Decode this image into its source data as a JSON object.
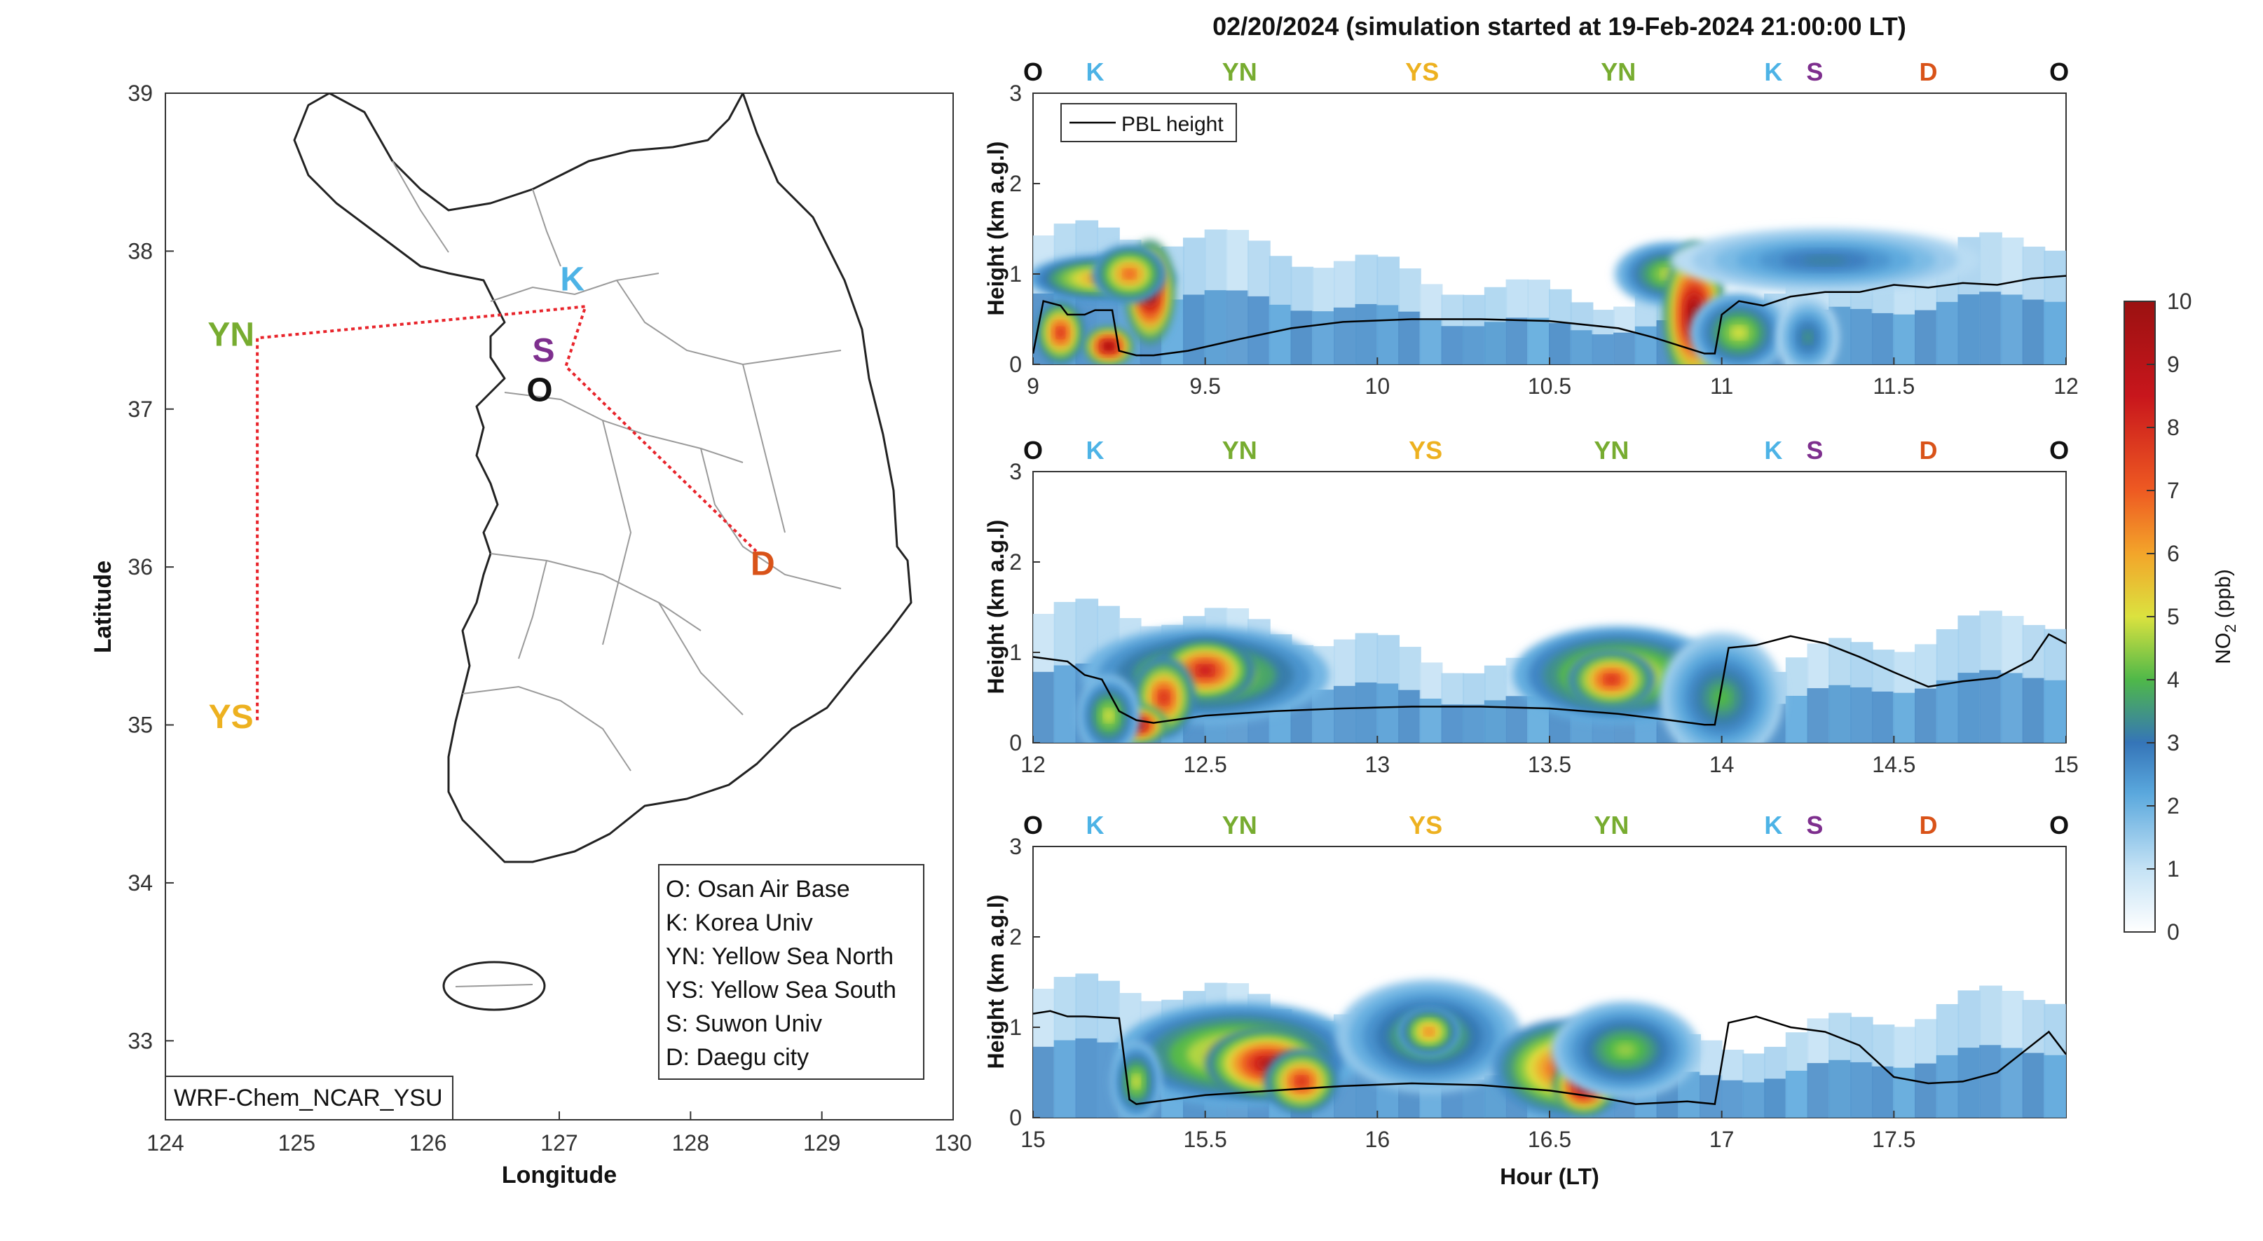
{
  "figure_title": "02/20/2024 (simulation started at 19-Feb-2024 21:00:00 LT)",
  "colors": {
    "O": "#111111",
    "K": "#4db3e6",
    "YN": "#77ac30",
    "YS": "#edb120",
    "S": "#7e2f8e",
    "D": "#d95319",
    "route": "#e8242b",
    "pbl": "#000000"
  },
  "chart_data": [
    {
      "type": "map",
      "xlabel": "Longitude",
      "ylabel": "Latitude",
      "xlim": [
        124,
        130
      ],
      "ylim": [
        32.5,
        39
      ],
      "xticks": [
        124,
        125,
        126,
        127,
        128,
        129,
        130
      ],
      "yticks": [
        33,
        34,
        35,
        36,
        37,
        38,
        39
      ],
      "model_label": "WRF-Chem_NCAR_YSU",
      "route": [
        [
          124.7,
          35.03
        ],
        [
          124.7,
          37.45
        ],
        [
          126.6,
          37.6
        ],
        [
          127.2,
          37.65
        ],
        [
          127.05,
          37.27
        ],
        [
          128.5,
          36.1
        ]
      ],
      "sites": [
        {
          "code": "O",
          "lon": 127.0,
          "lat": 37.1,
          "label_lon": 126.85,
          "label_lat": 37.05
        },
        {
          "code": "K",
          "lon": 127.2,
          "lat": 37.65,
          "label_lon": 127.1,
          "label_lat": 37.75
        },
        {
          "code": "YN",
          "lon": 124.7,
          "lat": 37.45,
          "label_lon": 124.5,
          "label_lat": 37.4
        },
        {
          "code": "YS",
          "lon": 124.7,
          "lat": 35.03,
          "label_lon": 124.5,
          "label_lat": 34.98
        },
        {
          "code": "S",
          "lon": 127.05,
          "lat": 37.27,
          "label_lon": 126.88,
          "label_lat": 37.3
        },
        {
          "code": "D",
          "lon": 128.5,
          "lat": 36.1,
          "label_lon": 128.55,
          "label_lat": 35.95
        }
      ],
      "legend": [
        "O: Osan Air Base",
        "K: Korea Univ",
        "YN: Yellow Sea North",
        "YS: Yellow Sea South",
        "S: Suwon Univ",
        "D: Daegu city"
      ]
    },
    {
      "type": "heatmap",
      "xlim": [
        9,
        12
      ],
      "ylim": [
        0,
        3
      ],
      "xticks": [
        9,
        9.5,
        10,
        10.5,
        11,
        11.5,
        12
      ],
      "yticks": [
        0,
        1,
        2,
        3
      ],
      "ylabel": "Height (km a.g.l)",
      "legend": [
        "PBL height"
      ],
      "site_labels": [
        [
          "O",
          9.0
        ],
        [
          "K",
          9.18
        ],
        [
          "YN",
          9.6
        ],
        [
          "YS",
          10.13
        ],
        [
          "YN",
          10.7
        ],
        [
          "K",
          11.15
        ],
        [
          "S",
          11.27
        ],
        [
          "D",
          11.6
        ],
        [
          "O",
          11.98
        ]
      ],
      "pbl": {
        "x": [
          9.0,
          9.03,
          9.08,
          9.1,
          9.15,
          9.18,
          9.23,
          9.25,
          9.3,
          9.35,
          9.45,
          9.6,
          9.75,
          9.9,
          10.1,
          10.3,
          10.5,
          10.7,
          10.8,
          10.9,
          10.95,
          10.98,
          11.0,
          11.05,
          11.12,
          11.2,
          11.3,
          11.4,
          11.5,
          11.6,
          11.7,
          11.8,
          11.9,
          12.0
        ],
        "y": [
          0.12,
          0.7,
          0.65,
          0.55,
          0.55,
          0.6,
          0.6,
          0.15,
          0.1,
          0.1,
          0.15,
          0.28,
          0.4,
          0.47,
          0.5,
          0.5,
          0.48,
          0.4,
          0.3,
          0.18,
          0.12,
          0.12,
          0.55,
          0.7,
          0.65,
          0.75,
          0.8,
          0.8,
          0.88,
          0.85,
          0.9,
          0.88,
          0.95,
          0.98
        ]
      },
      "blobs": [
        {
          "x": 9.2,
          "z": 0.95,
          "sx": 0.12,
          "sz": 0.14,
          "v": 6.5
        },
        {
          "x": 9.08,
          "z": 0.35,
          "sx": 0.04,
          "sz": 0.2,
          "v": 8
        },
        {
          "x": 9.22,
          "z": 0.2,
          "sx": 0.04,
          "sz": 0.12,
          "v": 10
        },
        {
          "x": 9.34,
          "z": 0.8,
          "sx": 0.04,
          "sz": 0.32,
          "v": 10
        },
        {
          "x": 9.28,
          "z": 1.0,
          "sx": 0.06,
          "sz": 0.18,
          "v": 7
        },
        {
          "x": 10.85,
          "z": 1.0,
          "sx": 0.09,
          "sz": 0.2,
          "v": 5
        },
        {
          "x": 10.92,
          "z": 0.55,
          "sx": 0.05,
          "sz": 0.45,
          "v": 10
        },
        {
          "x": 11.05,
          "z": 0.35,
          "sx": 0.08,
          "sz": 0.25,
          "v": 5
        },
        {
          "x": 11.3,
          "z": 1.15,
          "sx": 0.25,
          "sz": 0.2,
          "v": 3.2
        },
        {
          "x": 11.25,
          "z": 0.3,
          "sx": 0.05,
          "sz": 0.25,
          "v": 3.5
        }
      ]
    },
    {
      "type": "heatmap",
      "xlim": [
        12,
        15
      ],
      "ylim": [
        0,
        3
      ],
      "xticks": [
        12,
        12.5,
        13,
        13.5,
        14,
        14.5,
        15
      ],
      "yticks": [
        0,
        1,
        2,
        3
      ],
      "ylabel": "Height (km a.g.l)",
      "site_labels": [
        [
          "O",
          12.0
        ],
        [
          "K",
          12.18
        ],
        [
          "YN",
          12.6
        ],
        [
          "YS",
          13.14
        ],
        [
          "YN",
          13.68
        ],
        [
          "K",
          14.15
        ],
        [
          "S",
          14.27
        ],
        [
          "D",
          14.6
        ],
        [
          "O",
          14.98
        ]
      ],
      "pbl": {
        "x": [
          12.0,
          12.1,
          12.15,
          12.2,
          12.25,
          12.3,
          12.35,
          12.5,
          12.7,
          12.9,
          13.1,
          13.3,
          13.5,
          13.7,
          13.85,
          13.95,
          13.98,
          14.02,
          14.1,
          14.2,
          14.3,
          14.4,
          14.5,
          14.6,
          14.7,
          14.8,
          14.9,
          14.95,
          15.0
        ],
        "y": [
          0.95,
          0.9,
          0.75,
          0.7,
          0.35,
          0.25,
          0.22,
          0.3,
          0.35,
          0.38,
          0.4,
          0.4,
          0.38,
          0.32,
          0.25,
          0.2,
          0.2,
          1.05,
          1.08,
          1.18,
          1.1,
          0.95,
          0.78,
          0.62,
          0.68,
          0.72,
          0.92,
          1.2,
          1.1
        ]
      },
      "blobs": [
        {
          "x": 12.5,
          "z": 0.75,
          "sx": 0.2,
          "sz": 0.3,
          "v": 5.5
        },
        {
          "x": 12.5,
          "z": 0.8,
          "sx": 0.08,
          "sz": 0.2,
          "v": 8.5
        },
        {
          "x": 12.38,
          "z": 0.5,
          "sx": 0.05,
          "sz": 0.25,
          "v": 8
        },
        {
          "x": 12.3,
          "z": 0.2,
          "sx": 0.05,
          "sz": 0.12,
          "v": 10
        },
        {
          "x": 12.22,
          "z": 0.3,
          "sx": 0.05,
          "sz": 0.25,
          "v": 5
        },
        {
          "x": 13.7,
          "z": 0.75,
          "sx": 0.17,
          "sz": 0.3,
          "v": 6
        },
        {
          "x": 13.68,
          "z": 0.7,
          "sx": 0.07,
          "sz": 0.18,
          "v": 8
        },
        {
          "x": 13.95,
          "z": 0.4,
          "sx": 0.05,
          "sz": 0.25,
          "v": 7
        },
        {
          "x": 14.0,
          "z": 0.5,
          "sx": 0.1,
          "sz": 0.4,
          "v": 4
        }
      ]
    },
    {
      "type": "heatmap",
      "xlim": [
        15,
        18
      ],
      "ylim": [
        0,
        3
      ],
      "xticks": [
        15,
        15.5,
        16,
        16.5,
        17,
        17.5
      ],
      "yticks": [
        0,
        1,
        2,
        3
      ],
      "ylabel": "Height (km a.g.l)",
      "xlabel": "Hour (LT)",
      "site_labels": [
        [
          "O",
          15.0
        ],
        [
          "K",
          15.18
        ],
        [
          "YN",
          15.6
        ],
        [
          "YS",
          16.14
        ],
        [
          "YN",
          16.68
        ],
        [
          "K",
          17.15
        ],
        [
          "S",
          17.27
        ],
        [
          "D",
          17.6
        ],
        [
          "O",
          17.98
        ]
      ],
      "pbl": {
        "x": [
          15.0,
          15.05,
          15.1,
          15.15,
          15.25,
          15.28,
          15.3,
          15.4,
          15.5,
          15.7,
          15.9,
          16.1,
          16.3,
          16.5,
          16.65,
          16.75,
          16.9,
          16.98,
          17.02,
          17.1,
          17.2,
          17.3,
          17.4,
          17.5,
          17.6,
          17.7,
          17.8,
          17.9,
          17.95,
          18.0
        ],
        "y": [
          1.15,
          1.18,
          1.12,
          1.12,
          1.1,
          0.2,
          0.15,
          0.2,
          0.25,
          0.3,
          0.35,
          0.38,
          0.36,
          0.3,
          0.22,
          0.15,
          0.18,
          0.15,
          1.05,
          1.12,
          1.0,
          0.95,
          0.8,
          0.45,
          0.38,
          0.4,
          0.5,
          0.8,
          0.95,
          0.7
        ]
      },
      "blobs": [
        {
          "x": 15.6,
          "z": 0.7,
          "sx": 0.2,
          "sz": 0.32,
          "v": 6
        },
        {
          "x": 15.68,
          "z": 0.6,
          "sx": 0.1,
          "sz": 0.22,
          "v": 9
        },
        {
          "x": 15.78,
          "z": 0.4,
          "sx": 0.06,
          "sz": 0.2,
          "v": 8
        },
        {
          "x": 15.3,
          "z": 0.4,
          "sx": 0.04,
          "sz": 0.25,
          "v": 5
        },
        {
          "x": 16.15,
          "z": 0.9,
          "sx": 0.15,
          "sz": 0.35,
          "v": 4.5
        },
        {
          "x": 16.15,
          "z": 0.95,
          "sx": 0.05,
          "sz": 0.15,
          "v": 6.5
        },
        {
          "x": 16.55,
          "z": 0.55,
          "sx": 0.12,
          "sz": 0.3,
          "v": 7.5
        },
        {
          "x": 16.6,
          "z": 0.35,
          "sx": 0.05,
          "sz": 0.18,
          "v": 10
        },
        {
          "x": 16.72,
          "z": 0.75,
          "sx": 0.12,
          "sz": 0.3,
          "v": 4.5
        }
      ]
    },
    {
      "type": "colorbar",
      "label": "NO",
      "label_subscript": "2",
      "label_unit": " (ppb)",
      "ticks": [
        0,
        1,
        2,
        3,
        4,
        5,
        6,
        7,
        8,
        9,
        10
      ],
      "stops": [
        [
          0,
          "#ffffff"
        ],
        [
          1,
          "#c4e2f5"
        ],
        [
          2.2,
          "#5aa8dd"
        ],
        [
          3,
          "#3575b8"
        ],
        [
          4,
          "#4fb849"
        ],
        [
          5,
          "#dbe23f"
        ],
        [
          6,
          "#f3a52a"
        ],
        [
          7,
          "#ee5a22"
        ],
        [
          8.5,
          "#c8161c"
        ],
        [
          10,
          "#9b1111"
        ]
      ]
    }
  ]
}
